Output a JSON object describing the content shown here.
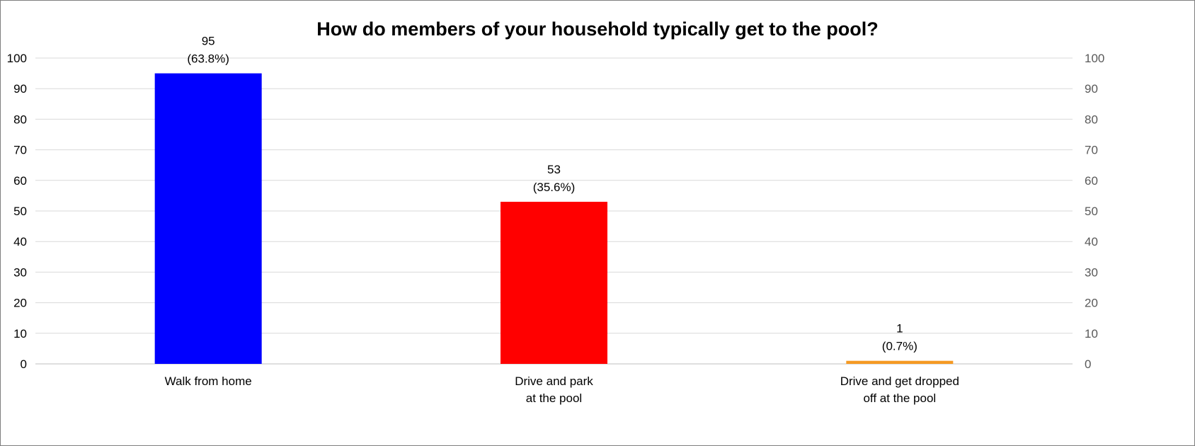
{
  "chart_data": {
    "type": "bar",
    "title": "How do members of your household typically get to the pool?",
    "categories": [
      [
        "Walk from home"
      ],
      [
        "Drive and park",
        "at the pool"
      ],
      [
        "Drive and get dropped",
        "off at the pool"
      ]
    ],
    "values": [
      95,
      53,
      1
    ],
    "percent_labels": [
      "(63.8%)",
      "(35.6%)",
      "(0.7%)"
    ],
    "colors": [
      "#0000ff",
      "#ff0000",
      "#f59a23"
    ],
    "ylim": [
      0,
      100
    ],
    "yticks": [
      0,
      10,
      20,
      30,
      40,
      50,
      60,
      70,
      80,
      90,
      100
    ],
    "secondary_yaxis": true,
    "grid": true,
    "xlabel": "",
    "ylabel": ""
  }
}
